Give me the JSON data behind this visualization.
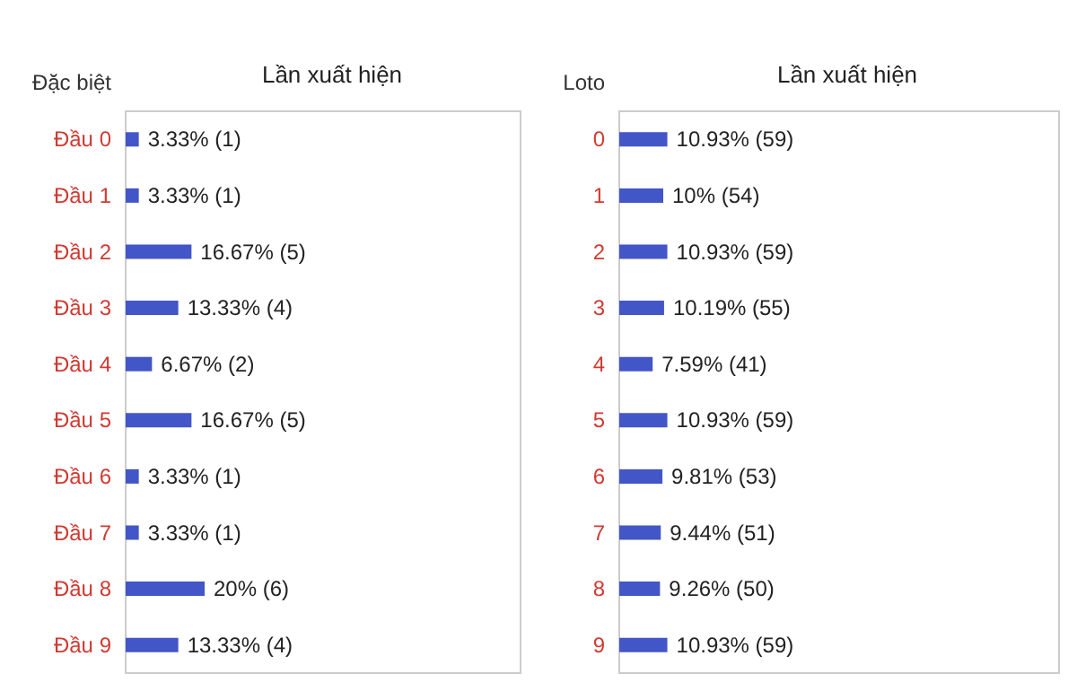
{
  "chart_data": [
    {
      "type": "bar",
      "orientation": "horizontal",
      "title": "Lần xuất hiện",
      "ylabel": "Đặc biệt",
      "categories": [
        "Đầu 0",
        "Đầu 1",
        "Đầu 2",
        "Đầu 3",
        "Đầu 4",
        "Đầu 5",
        "Đầu 6",
        "Đầu 7",
        "Đầu 8",
        "Đầu 9"
      ],
      "values": [
        3.33,
        3.33,
        16.67,
        13.33,
        6.67,
        16.67,
        3.33,
        3.33,
        20,
        13.33
      ],
      "value_labels": [
        "3.33% (1)",
        "3.33% (1)",
        "16.67% (5)",
        "13.33% (4)",
        "6.67% (2)",
        "16.67% (5)",
        "3.33% (1)",
        "3.33% (1)",
        "20% (6)",
        "13.33% (4)"
      ],
      "color": "#4356c8",
      "xlim": [
        0,
        100
      ],
      "tick_labels": "y",
      "grid": false
    },
    {
      "type": "bar",
      "orientation": "horizontal",
      "title": "Lần xuất hiện",
      "ylabel": "Loto",
      "categories": [
        "0",
        "1",
        "2",
        "3",
        "4",
        "5",
        "6",
        "7",
        "8",
        "9"
      ],
      "values": [
        10.93,
        10,
        10.93,
        10.19,
        7.59,
        10.93,
        9.81,
        9.44,
        9.26,
        10.93
      ],
      "value_labels": [
        "10.93% (59)",
        "10% (54)",
        "10.93% (59)",
        "10.19% (55)",
        "7.59% (41)",
        "10.93% (59)",
        "9.81% (53)",
        "9.44% (51)",
        "9.26% (50)",
        "10.93% (59)"
      ],
      "color": "#4356c8",
      "xlim": [
        0,
        100
      ],
      "tick_labels": "y",
      "grid": false
    }
  ]
}
